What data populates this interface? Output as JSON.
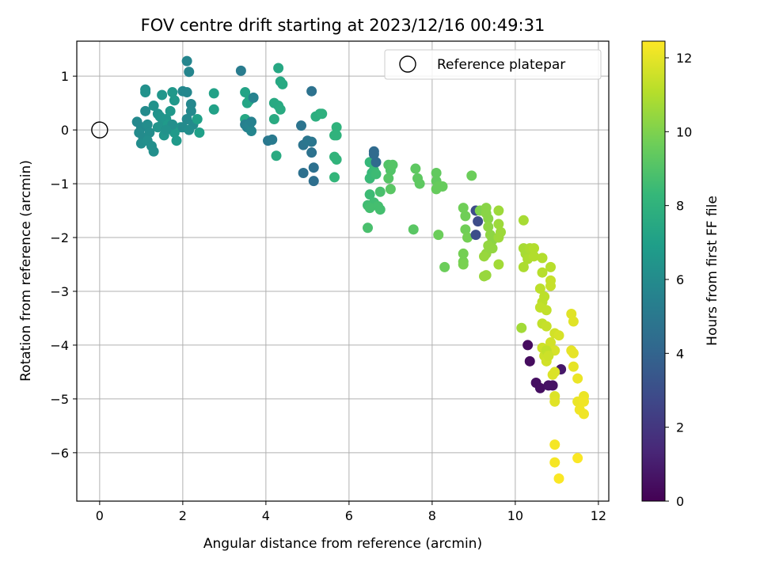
{
  "chart_data": {
    "type": "scatter",
    "title": "FOV centre drift starting at 2023/12/16 00:49:31",
    "xlabel": "Angular distance from reference (arcmin)",
    "ylabel": "Rotation from reference (arcmin)",
    "xlim": [
      -0.55,
      12.25
    ],
    "ylim": [
      -6.9,
      1.65
    ],
    "xticks": [
      0,
      2,
      4,
      6,
      8,
      10,
      12
    ],
    "yticks": [
      1,
      0,
      -1,
      -2,
      -3,
      -4,
      -5,
      -6
    ],
    "grid": true,
    "legend": {
      "label": "Reference platepar",
      "placement": "top-right",
      "marker": "open-circle"
    },
    "reference_point": {
      "x": 0,
      "y": 0
    },
    "colorbar": {
      "label": "Hours from first FF file",
      "min": 0,
      "max": 12.45,
      "ticks": [
        0,
        2,
        4,
        6,
        8,
        10,
        12
      ],
      "colormap": "viridis",
      "stops": [
        "#440154",
        "#482878",
        "#3e4989",
        "#31688e",
        "#26828e",
        "#1f9e89",
        "#35b779",
        "#6ece58",
        "#b5de2b",
        "#fde725"
      ]
    },
    "points": [
      [
        0.9,
        0.15,
        5.9
      ],
      [
        1.0,
        0.05,
        5.9
      ],
      [
        0.95,
        -0.05,
        6.0
      ],
      [
        1.05,
        -0.15,
        6.0
      ],
      [
        1.0,
        -0.25,
        6.1
      ],
      [
        1.1,
        0.35,
        6.0
      ],
      [
        1.15,
        0.1,
        6.1
      ],
      [
        1.2,
        -0.05,
        6.1
      ],
      [
        1.15,
        -0.2,
        6.2
      ],
      [
        1.25,
        -0.3,
        6.2
      ],
      [
        1.3,
        -0.4,
        6.2
      ],
      [
        1.1,
        0.75,
        6.2
      ],
      [
        1.1,
        0.7,
        6.3
      ],
      [
        1.3,
        0.45,
        6.3
      ],
      [
        1.4,
        0.3,
        6.3
      ],
      [
        1.45,
        0.25,
        6.4
      ],
      [
        1.5,
        0.1,
        6.4
      ],
      [
        1.4,
        0.05,
        6.4
      ],
      [
        1.55,
        -0.1,
        6.5
      ],
      [
        1.6,
        0.2,
        6.5
      ],
      [
        1.5,
        0.65,
        6.5
      ],
      [
        1.75,
        0.7,
        6.6
      ],
      [
        1.8,
        0.55,
        6.6
      ],
      [
        1.7,
        0.35,
        6.6
      ],
      [
        1.65,
        0.1,
        6.7
      ],
      [
        1.8,
        -0.05,
        6.7
      ],
      [
        1.85,
        -0.2,
        6.7
      ],
      [
        1.95,
        0.05,
        6.8
      ],
      [
        1.75,
        0.1,
        6.2
      ],
      [
        1.6,
        0.0,
        6.3
      ],
      [
        2.1,
        1.28,
        5.7
      ],
      [
        2.15,
        1.08,
        5.7
      ],
      [
        2.0,
        0.72,
        5.8
      ],
      [
        2.1,
        0.7,
        5.8
      ],
      [
        2.2,
        0.48,
        5.8
      ],
      [
        2.2,
        0.35,
        5.9
      ],
      [
        2.1,
        0.2,
        5.9
      ],
      [
        2.25,
        0.1,
        6.0
      ],
      [
        2.0,
        0.05,
        6.0
      ],
      [
        2.35,
        0.2,
        7.0
      ],
      [
        2.4,
        -0.05,
        7.0
      ],
      [
        2.75,
        0.68,
        7.1
      ],
      [
        2.75,
        0.38,
        7.1
      ],
      [
        2.15,
        0.0,
        6.1
      ],
      [
        3.4,
        1.1,
        5.2
      ],
      [
        3.5,
        0.7,
        7.2
      ],
      [
        3.55,
        0.5,
        7.3
      ],
      [
        3.6,
        0.55,
        7.3
      ],
      [
        3.5,
        0.2,
        7.4
      ],
      [
        3.5,
        0.1,
        5.4
      ],
      [
        3.55,
        0.05,
        5.5
      ],
      [
        3.6,
        0.1,
        5.6
      ],
      [
        3.7,
        0.6,
        5.6
      ],
      [
        3.65,
        -0.02,
        5.7
      ],
      [
        3.65,
        0.15,
        5.5
      ],
      [
        4.05,
        -0.2,
        5.0
      ],
      [
        4.15,
        -0.18,
        5.1
      ],
      [
        4.3,
        1.15,
        7.4
      ],
      [
        4.35,
        0.9,
        7.4
      ],
      [
        4.4,
        0.85,
        7.5
      ],
      [
        4.2,
        0.5,
        7.5
      ],
      [
        4.3,
        0.45,
        7.5
      ],
      [
        4.35,
        0.38,
        7.6
      ],
      [
        4.2,
        0.2,
        7.6
      ],
      [
        4.25,
        -0.48,
        7.6
      ],
      [
        4.85,
        0.08,
        4.8
      ],
      [
        4.9,
        -0.28,
        4.8
      ],
      [
        5.0,
        -0.2,
        4.9
      ],
      [
        5.1,
        -0.22,
        4.9
      ],
      [
        5.1,
        0.72,
        4.7
      ],
      [
        5.1,
        -0.42,
        4.7
      ],
      [
        5.15,
        -0.7,
        4.6
      ],
      [
        4.9,
        -0.8,
        4.6
      ],
      [
        5.15,
        -0.95,
        4.5
      ],
      [
        5.3,
        0.3,
        7.8
      ],
      [
        5.2,
        0.25,
        7.8
      ],
      [
        5.35,
        0.3,
        7.9
      ],
      [
        5.7,
        0.05,
        8.0
      ],
      [
        5.65,
        -0.1,
        8.0
      ],
      [
        5.7,
        -0.1,
        8.0
      ],
      [
        5.65,
        -0.5,
        8.1
      ],
      [
        5.7,
        -0.55,
        8.1
      ],
      [
        5.65,
        -0.88,
        8.2
      ],
      [
        6.5,
        -0.6,
        8.3
      ],
      [
        6.55,
        -0.8,
        8.3
      ],
      [
        6.5,
        -0.9,
        8.4
      ],
      [
        6.6,
        -0.75,
        8.4
      ],
      [
        6.65,
        -0.82,
        8.5
      ],
      [
        6.6,
        -0.4,
        4.3
      ],
      [
        6.65,
        -0.6,
        4.3
      ],
      [
        6.6,
        -0.45,
        4.3
      ],
      [
        6.5,
        -1.2,
        8.5
      ],
      [
        6.6,
        -1.35,
        8.6
      ],
      [
        6.45,
        -1.4,
        8.6
      ],
      [
        6.5,
        -1.45,
        8.7
      ],
      [
        6.7,
        -1.42,
        8.7
      ],
      [
        6.75,
        -1.48,
        8.7
      ],
      [
        6.75,
        -1.15,
        8.8
      ],
      [
        6.45,
        -1.82,
        8.8
      ],
      [
        6.95,
        -0.65,
        9.0
      ],
      [
        7.0,
        -0.75,
        9.0
      ],
      [
        7.05,
        -0.65,
        9.1
      ],
      [
        6.95,
        -0.9,
        9.1
      ],
      [
        7.0,
        -1.1,
        9.2
      ],
      [
        7.55,
        -1.85,
        9.2
      ],
      [
        7.6,
        -0.72,
        9.3
      ],
      [
        7.65,
        -0.9,
        9.3
      ],
      [
        7.7,
        -1.0,
        9.3
      ],
      [
        8.1,
        -0.8,
        9.4
      ],
      [
        8.1,
        -0.95,
        9.4
      ],
      [
        8.15,
        -1.05,
        9.5
      ],
      [
        8.25,
        -1.05,
        9.5
      ],
      [
        8.1,
        -1.1,
        9.5
      ],
      [
        8.15,
        -1.95,
        9.6
      ],
      [
        8.3,
        -2.55,
        9.6
      ],
      [
        8.95,
        -0.85,
        9.6
      ],
      [
        8.75,
        -1.45,
        9.7
      ],
      [
        8.8,
        -1.6,
        9.7
      ],
      [
        8.8,
        -1.85,
        9.7
      ],
      [
        8.85,
        -2.0,
        9.8
      ],
      [
        8.75,
        -2.3,
        9.8
      ],
      [
        8.75,
        -2.45,
        9.8
      ],
      [
        8.75,
        -2.5,
        9.9
      ],
      [
        9.05,
        -1.5,
        2.9
      ],
      [
        9.1,
        -1.7,
        2.9
      ],
      [
        9.05,
        -1.95,
        3.0
      ],
      [
        9.15,
        -1.5,
        10.0
      ],
      [
        9.3,
        -1.45,
        10.2
      ],
      [
        9.3,
        -1.55,
        10.2
      ],
      [
        9.35,
        -1.65,
        10.2
      ],
      [
        9.35,
        -1.8,
        10.3
      ],
      [
        9.4,
        -1.95,
        10.3
      ],
      [
        9.45,
        -2.05,
        10.3
      ],
      [
        9.35,
        -2.15,
        10.4
      ],
      [
        9.45,
        -2.2,
        10.4
      ],
      [
        9.3,
        -2.3,
        10.4
      ],
      [
        9.25,
        -2.35,
        10.5
      ],
      [
        9.3,
        -2.7,
        10.5
      ],
      [
        9.25,
        -2.72,
        10.5
      ],
      [
        9.6,
        -1.5,
        10.6
      ],
      [
        9.6,
        -1.75,
        10.6
      ],
      [
        9.65,
        -1.9,
        10.6
      ],
      [
        9.6,
        -2.0,
        10.6
      ],
      [
        9.6,
        -2.5,
        10.7
      ],
      [
        10.15,
        -3.68,
        10.7
      ],
      [
        10.2,
        -1.68,
        10.8
      ],
      [
        10.2,
        -2.2,
        10.8
      ],
      [
        10.25,
        -2.3,
        10.8
      ],
      [
        10.3,
        -2.4,
        10.9
      ],
      [
        10.2,
        -2.55,
        10.9
      ],
      [
        10.35,
        -2.2,
        10.9
      ],
      [
        10.45,
        -2.2,
        11.0
      ],
      [
        10.45,
        -2.35,
        11.0
      ],
      [
        10.65,
        -2.38,
        11.0
      ],
      [
        10.3,
        -4.0,
        0.4
      ],
      [
        10.35,
        -4.3,
        0.4
      ],
      [
        10.5,
        -4.7,
        0.5
      ],
      [
        10.6,
        -4.8,
        0.5
      ],
      [
        10.8,
        -4.75,
        0.6
      ],
      [
        10.9,
        -4.75,
        0.6
      ],
      [
        11.1,
        -4.45,
        0.8
      ],
      [
        10.65,
        -2.65,
        11.1
      ],
      [
        10.85,
        -2.55,
        11.1
      ],
      [
        10.6,
        -2.95,
        11.2
      ],
      [
        10.7,
        -3.1,
        11.2
      ],
      [
        10.65,
        -3.2,
        11.2
      ],
      [
        10.6,
        -3.3,
        11.3
      ],
      [
        10.75,
        -3.35,
        11.3
      ],
      [
        10.65,
        -3.6,
        11.3
      ],
      [
        10.75,
        -3.65,
        11.4
      ],
      [
        10.85,
        -2.8,
        11.4
      ],
      [
        10.85,
        -2.9,
        11.4
      ],
      [
        10.65,
        -4.05,
        11.5
      ],
      [
        10.7,
        -4.2,
        11.5
      ],
      [
        10.75,
        -4.3,
        11.6
      ],
      [
        10.85,
        -3.95,
        11.6
      ],
      [
        10.95,
        -3.78,
        11.6
      ],
      [
        11.05,
        -3.82,
        11.7
      ],
      [
        10.95,
        -4.1,
        11.7
      ],
      [
        10.95,
        -4.5,
        11.8
      ],
      [
        10.9,
        -4.55,
        11.8
      ],
      [
        10.95,
        -4.95,
        11.8
      ],
      [
        10.95,
        -5.05,
        11.9
      ],
      [
        11.35,
        -3.42,
        11.9
      ],
      [
        11.4,
        -3.56,
        11.9
      ],
      [
        11.35,
        -4.1,
        12.0
      ],
      [
        11.4,
        -4.15,
        12.0
      ],
      [
        11.4,
        -4.4,
        12.0
      ],
      [
        11.5,
        -4.62,
        12.1
      ],
      [
        11.5,
        -5.05,
        12.1
      ],
      [
        11.65,
        -4.95,
        12.1
      ],
      [
        11.65,
        -5.05,
        12.2
      ],
      [
        11.55,
        -5.2,
        12.2
      ],
      [
        11.65,
        -5.28,
        12.2
      ],
      [
        10.95,
        -5.85,
        12.3
      ],
      [
        10.95,
        -6.18,
        12.3
      ],
      [
        11.05,
        -6.48,
        12.4
      ],
      [
        11.5,
        -6.1,
        12.4
      ],
      [
        10.75,
        -4.1,
        11.3
      ],
      [
        10.8,
        -4.2,
        11.5
      ]
    ]
  }
}
